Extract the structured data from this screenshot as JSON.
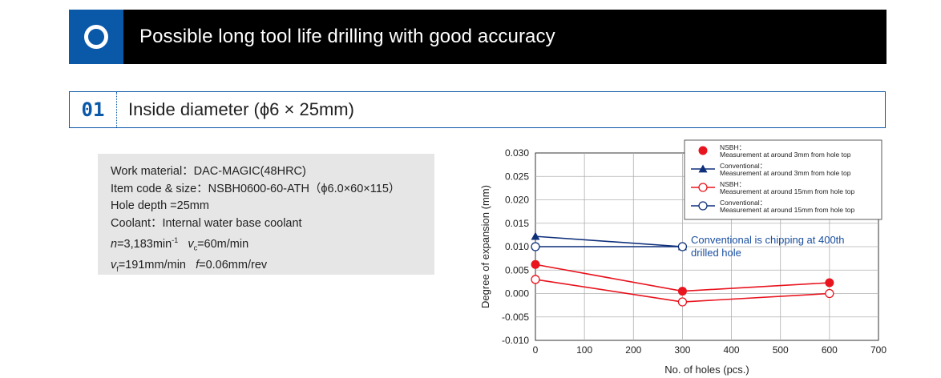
{
  "header": {
    "title": "Possible long tool life drilling with good accuracy",
    "badge_icon": "ring-icon"
  },
  "section": {
    "number": "01",
    "title": "Inside diameter (ϕ6 × 25mm)"
  },
  "specs": {
    "work_material": "Work material：DAC-MAGIC(48HRC)",
    "item_code": "Item code & size：NSBH0600-60-ATH（ϕ6.0×60×115）",
    "hole_depth": "Hole depth =25mm",
    "coolant": "Coolant：Internal water base coolant",
    "n_var": "n",
    "n_val": "=3,183min",
    "n_exp": "-1",
    "vc_var": "v",
    "vc_sub": "c",
    "vc_val": "=60m/min",
    "vf_var": "v",
    "vf_sub": "f",
    "vf_val": "=191mm/min",
    "f_var": "f",
    "f_val": "=0.06mm/rev"
  },
  "chart_data": {
    "type": "line",
    "title": "",
    "xlabel": "No. of holes (pcs.)",
    "ylabel": "Degree of expansion (mm)",
    "xlim": [
      0,
      700
    ],
    "ylim": [
      -0.01,
      0.03
    ],
    "xticks": [
      "0",
      "100",
      "200",
      "300",
      "400",
      "500",
      "600",
      "700"
    ],
    "yticks": [
      "0.030",
      "0.025",
      "0.020",
      "0.015",
      "0.010",
      "0.005",
      "0.000",
      "-0.005",
      "-0.010"
    ],
    "grid": true,
    "legend_position": "top-right",
    "series": [
      {
        "name": "NSBH：",
        "name2": "Measurement at around 3mm from hole top",
        "color": "#e8141e",
        "marker": "circle-filled",
        "x": [
          0,
          300,
          600
        ],
        "y": [
          0.0062,
          0.0005,
          0.0023
        ]
      },
      {
        "name": "Conventional：",
        "name2": "Measurement at around 3mm from hole top",
        "color": "#0e2f7a",
        "marker": "triangle-filled",
        "x": [
          0,
          300
        ],
        "y": [
          0.0122,
          0.01
        ]
      },
      {
        "name": "NSBH：",
        "name2": "Measurement at around 15mm from hole top",
        "color": "#e8141e",
        "marker": "circle-open",
        "x": [
          0,
          300,
          600
        ],
        "y": [
          0.003,
          -0.0018,
          0.0
        ]
      },
      {
        "name": "Conventional：",
        "name2": "Measurement at around 15mm from hole top",
        "color": "#0e2f7a",
        "marker": "circle-open",
        "x": [
          0,
          300
        ],
        "y": [
          0.01,
          0.01
        ]
      }
    ],
    "annotation": {
      "line1": "Conventional is chipping at 400th",
      "line2": "drilled hole",
      "color": "#1a4fa0"
    }
  }
}
